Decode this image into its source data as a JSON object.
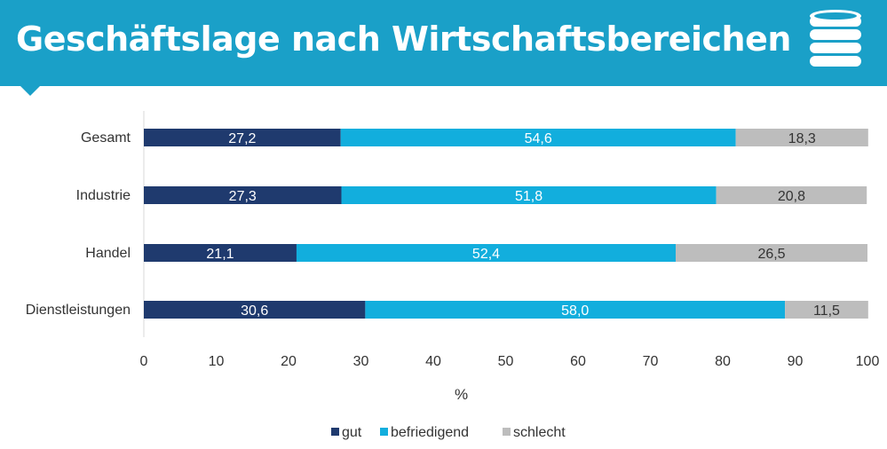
{
  "header": {
    "title": "Geschäftslage nach Wirtschaftsbereichen",
    "icon": "database-stack-icon"
  },
  "colors": {
    "banner": "#1aa0c8",
    "gut": "#1f3a6e",
    "befriedigend": "#12aedd",
    "schlecht": "#bdbdbd"
  },
  "chart_data": {
    "type": "bar",
    "orientation": "horizontal",
    "stacked": true,
    "categories": [
      "Gesamt",
      "Industrie",
      "Handel",
      "Dienstleistungen"
    ],
    "series": [
      {
        "name": "gut",
        "color": "#1f3a6e",
        "values": [
          27.2,
          27.3,
          21.1,
          30.6
        ],
        "labels": [
          "27,2",
          "27,3",
          "21,1",
          "30,6"
        ]
      },
      {
        "name": "befriedigend",
        "color": "#12aedd",
        "values": [
          54.6,
          51.8,
          52.4,
          58.0
        ],
        "labels": [
          "54,6",
          "51,8",
          "52,4",
          "58,0"
        ]
      },
      {
        "name": "schlecht",
        "color": "#bdbdbd",
        "values": [
          18.3,
          20.8,
          26.5,
          11.5
        ],
        "labels": [
          "18,3",
          "20,8",
          "26,5",
          "11,5"
        ]
      }
    ],
    "xlim": [
      0,
      100
    ],
    "xticks": [
      "0",
      "10",
      "20",
      "30",
      "40",
      "50",
      "60",
      "70",
      "80",
      "90",
      "100"
    ],
    "xlabel": "%",
    "legend": "bottom",
    "grid": false
  }
}
